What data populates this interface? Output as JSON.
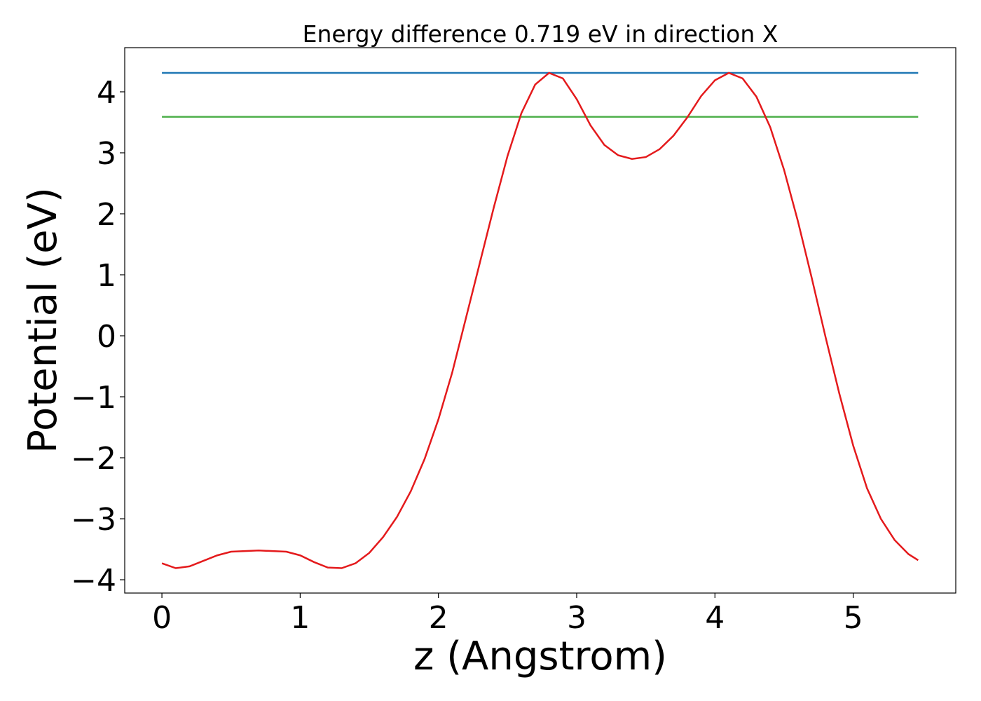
{
  "chart_data": {
    "type": "line",
    "title": "Energy difference 0.719 eV in direction X",
    "x_label": "z (Angstrom)",
    "y_label": "Potential (eV)",
    "xlim": [
      -0.269,
      5.742
    ],
    "ylim": [
      -4.218,
      4.724
    ],
    "xticks": [
      0,
      1,
      2,
      3,
      4,
      5
    ],
    "yticks": [
      {
        "value": -4,
        "label": "−4"
      },
      {
        "value": -3,
        "label": "−3"
      },
      {
        "value": -2,
        "label": "−2"
      },
      {
        "value": -1,
        "label": "−1"
      },
      0,
      1,
      2,
      3,
      4
    ],
    "series": [
      {
        "color": "#1f77b4",
        "x": [
          0,
          5.47
        ],
        "values": [
          4.31,
          4.31
        ]
      },
      {
        "color": "#4daf4a",
        "x": [
          0,
          5.47
        ],
        "values": [
          3.591,
          3.591
        ]
      },
      {
        "color": "#e41a1c",
        "x": [
          0,
          0.1,
          0.2,
          0.3,
          0.4,
          0.5,
          0.7,
          0.9,
          1.0,
          1.1,
          1.2,
          1.3,
          1.4,
          1.5,
          1.6,
          1.7,
          1.8,
          1.9,
          2.0,
          2.1,
          2.2,
          2.3,
          2.4,
          2.5,
          2.6,
          2.7,
          2.8,
          2.9,
          3.0,
          3.1,
          3.2,
          3.3,
          3.4,
          3.5,
          3.6,
          3.7,
          3.8,
          3.9,
          4.0,
          4.1,
          4.2,
          4.3,
          4.4,
          4.5,
          4.6,
          4.7,
          4.8,
          4.9,
          5.0,
          5.1,
          5.2,
          5.3,
          5.4,
          5.47
        ],
        "values": [
          -3.73,
          -3.81,
          -3.78,
          -3.69,
          -3.6,
          -3.54,
          -3.52,
          -3.54,
          -3.6,
          -3.71,
          -3.8,
          -3.81,
          -3.73,
          -3.56,
          -3.3,
          -2.97,
          -2.55,
          -2.02,
          -1.37,
          -0.6,
          0.3,
          1.2,
          2.1,
          2.95,
          3.65,
          4.12,
          4.31,
          4.22,
          3.88,
          3.45,
          3.13,
          2.96,
          2.9,
          2.93,
          3.06,
          3.28,
          3.58,
          3.93,
          4.19,
          4.31,
          4.22,
          3.92,
          3.42,
          2.72,
          1.88,
          0.95,
          -0.02,
          -0.95,
          -1.8,
          -2.5,
          -3.0,
          -3.35,
          -3.58,
          -3.68
        ]
      }
    ]
  }
}
